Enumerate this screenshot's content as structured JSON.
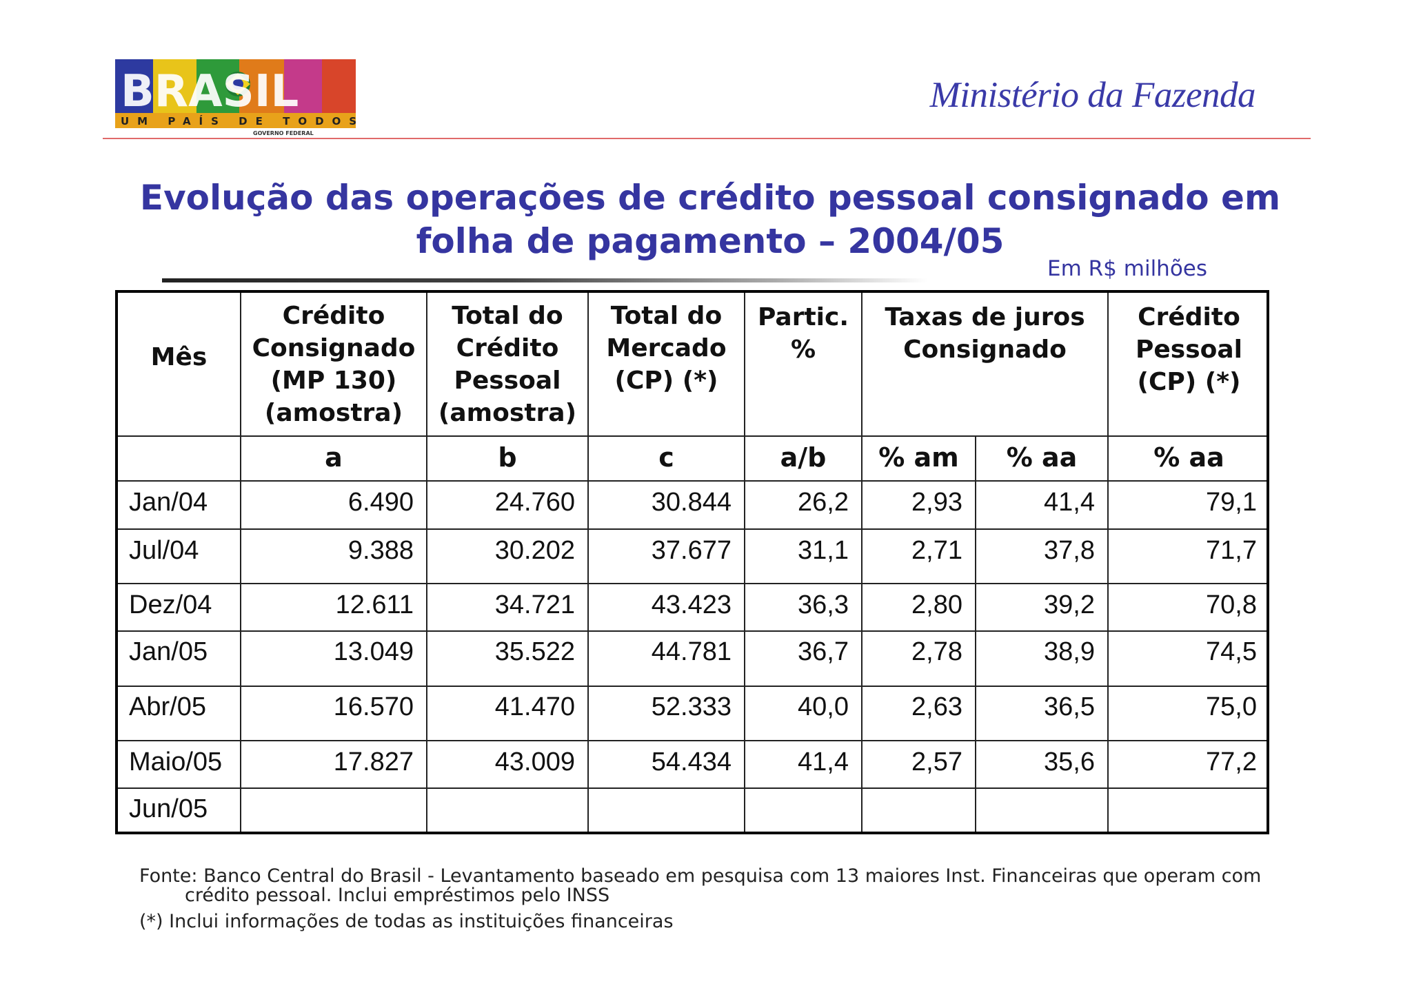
{
  "header": {
    "logo_text": "BRASIL",
    "logo_tagline": "UM PAÍS DE TODOS",
    "logo_subtagline": "GOVERNO FEDERAL",
    "ministry": "Ministério da Fazenda"
  },
  "title_line1": "Evolução das operações de crédito pessoal consignado em",
  "title_line2": "folha de pagamento – 2004/05",
  "unit": "Em R$ milhões",
  "table": {
    "headers": {
      "mes": "Mês",
      "credito_consignado": [
        "Crédito",
        "Consignado",
        "(MP 130)",
        "(amostra)"
      ],
      "total_credito_pessoal": [
        "Total do",
        "Crédito",
        "Pessoal",
        "(amostra)"
      ],
      "total_mercado": [
        "Total do",
        "Mercado",
        "(CP) (*)"
      ],
      "partic": [
        "Partic.",
        "%"
      ],
      "taxas": [
        "Taxas de juros",
        "Consignado"
      ],
      "credito_pessoal": [
        "Crédito",
        "Pessoal",
        "(CP)  (*)"
      ]
    },
    "subheaders": [
      "",
      "a",
      "b",
      "c",
      "a/b",
      "% am",
      "% aa",
      "% aa"
    ],
    "rows": [
      [
        "Jan/04",
        "6.490",
        "24.760",
        "30.844",
        "26,2",
        "2,93",
        "41,4",
        "79,1"
      ],
      [
        "Jul/04",
        "9.388",
        "30.202",
        "37.677",
        "31,1",
        "2,71",
        "37,8",
        "71,7"
      ],
      [
        "Dez/04",
        "12.611",
        "34.721",
        "43.423",
        "36,3",
        "2,80",
        "39,2",
        "70,8"
      ],
      [
        "Jan/05",
        "13.049",
        "35.522",
        "44.781",
        "36,7",
        "2,78",
        "38,9",
        "74,5"
      ],
      [
        "Abr/05",
        "16.570",
        "41.470",
        "52.333",
        "40,0",
        "2,63",
        "36,5",
        "75,0"
      ],
      [
        "Maio/05",
        "17.827",
        "43.009",
        "54.434",
        "41,4",
        "2,57",
        "35,6",
        "77,2"
      ],
      [
        "Jun/05",
        "",
        "",
        "",
        "",
        "",
        "",
        ""
      ]
    ]
  },
  "footnotes": {
    "source_line1": "Fonte: Banco Central do Brasil - Levantamento baseado em pesquisa com 13 maiores Inst. Financeiras que operam com",
    "source_line2": "crédito pessoal. Inclui empréstimos pelo INSS",
    "note": "(*) Inclui informações de todas as instituições financeiras"
  },
  "colors": {
    "title": "#3535a0",
    "header_rule": "#e06a6a"
  }
}
